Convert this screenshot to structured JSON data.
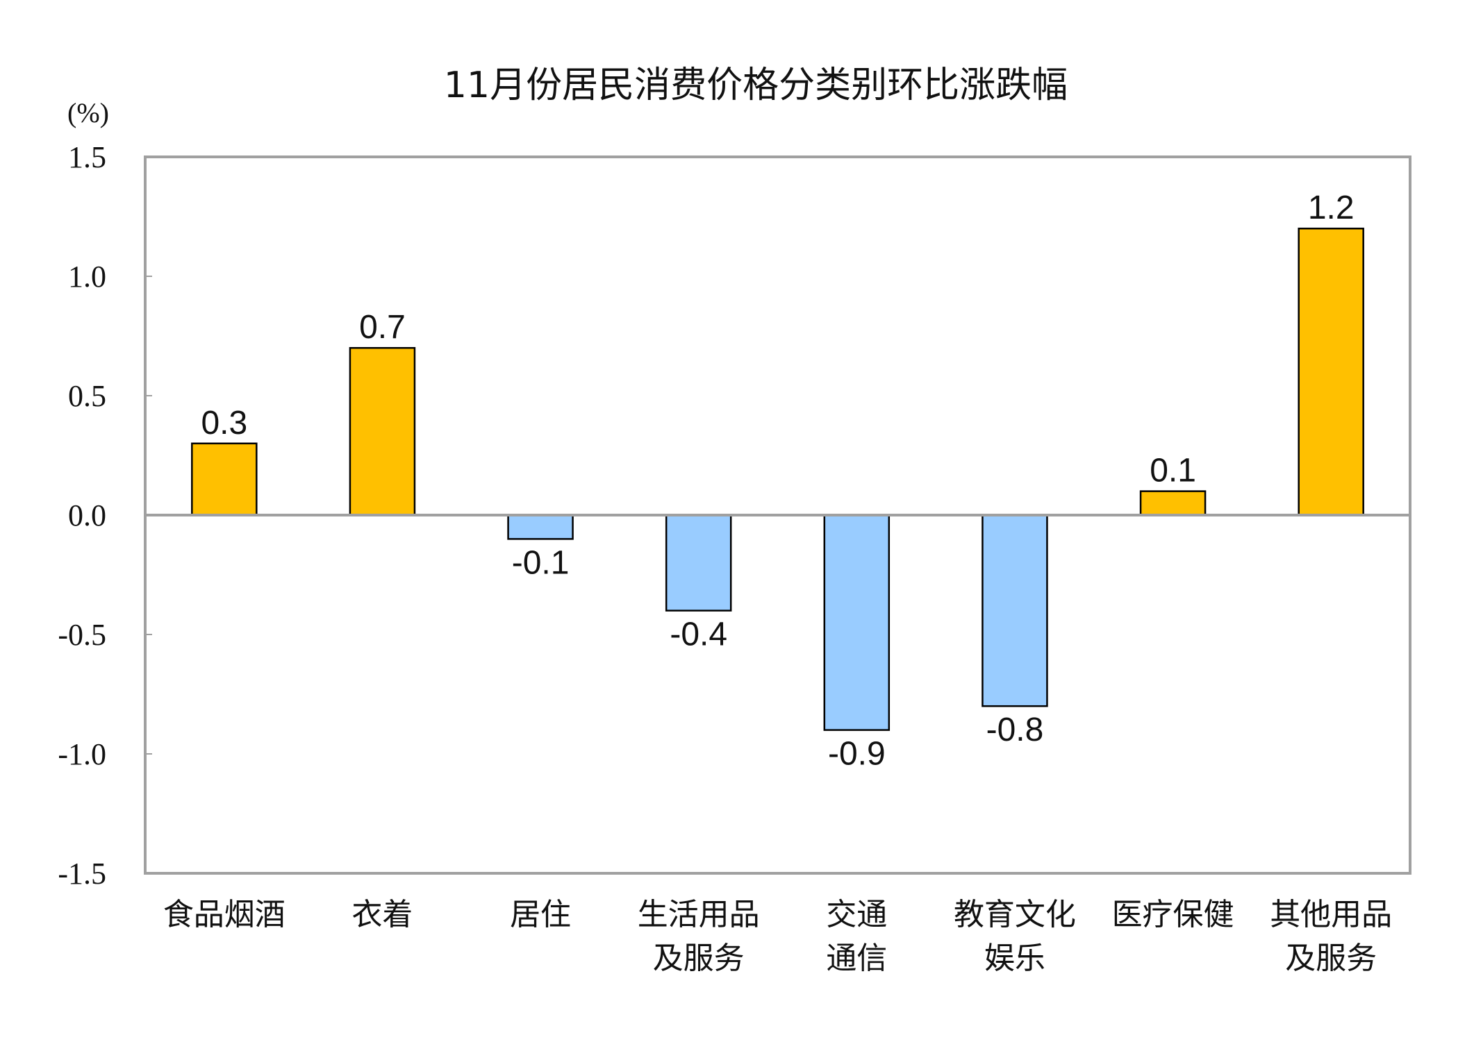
{
  "chart_data": {
    "type": "bar",
    "title": "11月份居民消费价格分类别环比涨跌幅",
    "ylabel": "(%)",
    "xlabel": "",
    "ylim": [
      -1.5,
      1.5
    ],
    "yticks": [
      "1.5",
      "1.0",
      "0.5",
      "0.0",
      "-0.5",
      "-1.0",
      "-1.5"
    ],
    "ytick_values": [
      1.5,
      1.0,
      0.5,
      0.0,
      -0.5,
      -1.0,
      -1.5
    ],
    "categories": [
      [
        "食品烟酒"
      ],
      [
        "衣着"
      ],
      [
        "居住"
      ],
      [
        "生活用品",
        "及服务"
      ],
      [
        "交通",
        "通信"
      ],
      [
        "教育文化",
        "娱乐"
      ],
      [
        "医疗保健"
      ],
      [
        "其他用品",
        "及服务"
      ]
    ],
    "values": [
      0.3,
      0.7,
      -0.1,
      -0.4,
      -0.9,
      -0.8,
      0.1,
      1.2
    ],
    "data_labels": [
      "0.3",
      "0.7",
      "-0.1",
      "-0.4",
      "-0.9",
      "-0.8",
      "0.1",
      "1.2"
    ],
    "grid": false,
    "legend": "none",
    "colors": {
      "positive": "#FFC000",
      "negative": "#99CCFF",
      "frame": "#A0A0A0",
      "bar_edge": "#000000"
    }
  }
}
